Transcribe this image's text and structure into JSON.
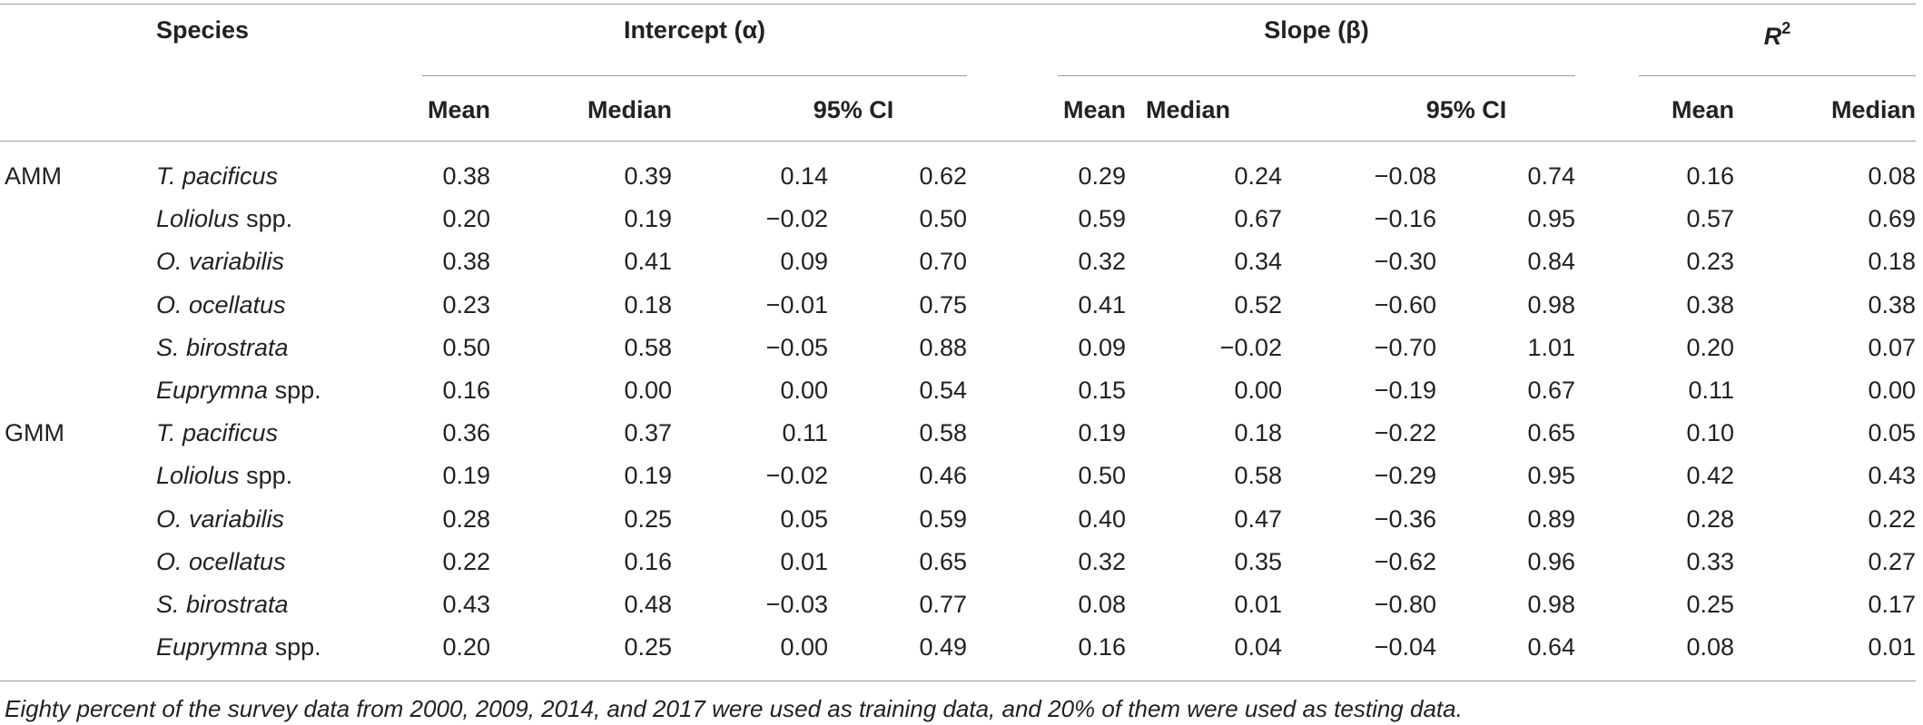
{
  "header": {
    "species": "Species",
    "intercept": "Intercept (α)",
    "slope": "Slope (β)",
    "r2_base": "R",
    "r2_sup": "2",
    "sub": {
      "intercept": [
        "Mean",
        "Median",
        "95% CI"
      ],
      "slope": [
        "Mean",
        "Median",
        "95% CI"
      ],
      "r2": [
        "Mean",
        "Median"
      ]
    }
  },
  "rows": [
    {
      "model": "AMM",
      "genus": "T. pacificus",
      "suffix": "",
      "values": [
        "0.38",
        "0.39",
        "0.14",
        "0.62",
        "0.29",
        "0.24",
        "−0.08",
        "0.74",
        "0.16",
        "0.08"
      ]
    },
    {
      "model": "",
      "genus": "Loliolus",
      "suffix": " spp.",
      "values": [
        "0.20",
        "0.19",
        "−0.02",
        "0.50",
        "0.59",
        "0.67",
        "−0.16",
        "0.95",
        "0.57",
        "0.69"
      ]
    },
    {
      "model": "",
      "genus": "O. variabilis",
      "suffix": "",
      "values": [
        "0.38",
        "0.41",
        "0.09",
        "0.70",
        "0.32",
        "0.34",
        "−0.30",
        "0.84",
        "0.23",
        "0.18"
      ]
    },
    {
      "model": "",
      "genus": "O. ocellatus",
      "suffix": "",
      "values": [
        "0.23",
        "0.18",
        "−0.01",
        "0.75",
        "0.41",
        "0.52",
        "−0.60",
        "0.98",
        "0.38",
        "0.38"
      ]
    },
    {
      "model": "",
      "genus": "S. birostrata",
      "suffix": "",
      "values": [
        "0.50",
        "0.58",
        "−0.05",
        "0.88",
        "0.09",
        "−0.02",
        "−0.70",
        "1.01",
        "0.20",
        "0.07"
      ]
    },
    {
      "model": "",
      "genus": "Euprymna",
      "suffix": " spp.",
      "values": [
        "0.16",
        "0.00",
        "0.00",
        "0.54",
        "0.15",
        "0.00",
        "−0.19",
        "0.67",
        "0.11",
        "0.00"
      ]
    },
    {
      "model": "GMM",
      "genus": "T. pacificus",
      "suffix": "",
      "values": [
        "0.36",
        "0.37",
        "0.11",
        "0.58",
        "0.19",
        "0.18",
        "−0.22",
        "0.65",
        "0.10",
        "0.05"
      ]
    },
    {
      "model": "",
      "genus": "Loliolus",
      "suffix": " spp.",
      "values": [
        "0.19",
        "0.19",
        "−0.02",
        "0.46",
        "0.50",
        "0.58",
        "−0.29",
        "0.95",
        "0.42",
        "0.43"
      ]
    },
    {
      "model": "",
      "genus": "O. variabilis",
      "suffix": "",
      "values": [
        "0.28",
        "0.25",
        "0.05",
        "0.59",
        "0.40",
        "0.47",
        "−0.36",
        "0.89",
        "0.28",
        "0.22"
      ]
    },
    {
      "model": "",
      "genus": "O. ocellatus",
      "suffix": "",
      "values": [
        "0.22",
        "0.16",
        "0.01",
        "0.65",
        "0.32",
        "0.35",
        "−0.62",
        "0.96",
        "0.33",
        "0.27"
      ]
    },
    {
      "model": "",
      "genus": "S. birostrata",
      "suffix": "",
      "values": [
        "0.43",
        "0.48",
        "−0.03",
        "0.77",
        "0.08",
        "0.01",
        "−0.80",
        "0.98",
        "0.25",
        "0.17"
      ]
    },
    {
      "model": "",
      "genus": "Euprymna",
      "suffix": " spp.",
      "values": [
        "0.20",
        "0.25",
        "0.00",
        "0.49",
        "0.16",
        "0.04",
        "−0.04",
        "0.64",
        "0.08",
        "0.01"
      ]
    }
  ],
  "footnote": "Eighty percent of the survey data from 2000, 2009, 2014, and 2017 were used as training data, and 20% of them were used as testing data."
}
